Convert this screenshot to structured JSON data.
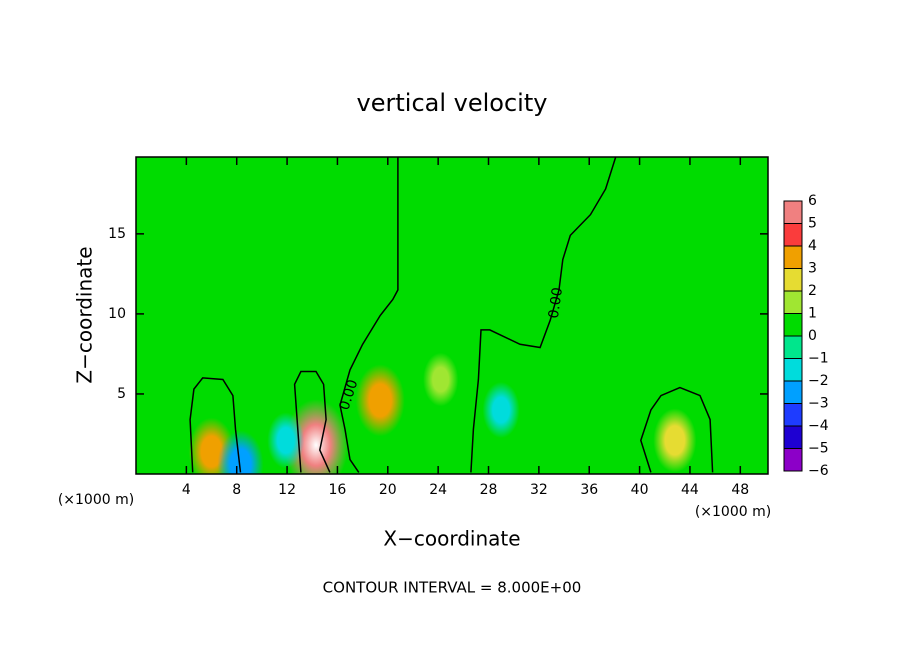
{
  "chart_data": {
    "type": "contour",
    "title": "vertical velocity",
    "xlabel": "X−coordinate",
    "ylabel": "Z−coordinate",
    "x_unit": "(×1000 m)",
    "footer": "CONTOUR INTERVAL = 8.000E+00",
    "xlim": [
      0,
      50.2
    ],
    "ylim": [
      0,
      19.8
    ],
    "xticks": [
      4,
      8,
      12,
      16,
      20,
      24,
      28,
      32,
      36,
      40,
      44,
      48
    ],
    "yticks": [
      5,
      10,
      15
    ],
    "background_color": "#00dc00",
    "cells": [
      {
        "x": 6.0,
        "z": 1.4,
        "value": 3
      },
      {
        "x": 14.3,
        "z": 1.8,
        "value": 6
      },
      {
        "x": 19.4,
        "z": 4.6,
        "value": 3.5
      },
      {
        "x": 24.2,
        "z": 5.9,
        "value": 1.2
      },
      {
        "x": 29.0,
        "z": 4.0,
        "value": -1.5
      },
      {
        "x": 42.8,
        "z": 2.1,
        "value": 2.5
      },
      {
        "x": 11.9,
        "z": 2.1,
        "value": -1.5
      },
      {
        "x": 25.8,
        "z": 12.8,
        "value": 0.5
      },
      {
        "x": 8.3,
        "z": 0.6,
        "value": -3
      }
    ],
    "contours": [
      {
        "level": 0,
        "x": [
          20.8,
          20.8,
          20.4,
          19.4,
          18.0,
          17.0,
          16.2,
          16.6,
          17.0,
          17.7
        ],
        "z": [
          19.8,
          11.5,
          10.9,
          9.9,
          8.1,
          6.5,
          4.3,
          2.8,
          0.9,
          0.1
        ]
      },
      {
        "level": 0,
        "x": [
          38.1,
          37.3,
          36.1,
          34.5,
          33.9,
          33.6,
          32.9,
          32.1,
          30.5,
          28.1,
          27.4,
          27.2,
          26.8,
          26.6
        ],
        "z": [
          19.8,
          17.8,
          16.2,
          14.9,
          13.4,
          11.5,
          9.6,
          7.9,
          8.1,
          9.0,
          9.0,
          5.9,
          2.8,
          0.1
        ]
      },
      {
        "level": 0,
        "x": [
          4.5,
          4.3,
          4.6,
          5.3,
          6.9,
          7.7,
          7.9,
          8.3
        ],
        "z": [
          0.1,
          3.4,
          5.3,
          6.0,
          5.9,
          4.9,
          2.8,
          0.1
        ]
      },
      {
        "level": 0,
        "x": [
          13.1,
          12.8,
          12.6,
          13.1,
          14.3,
          14.9,
          15.1,
          14.6,
          15.4
        ],
        "z": [
          0.1,
          3.4,
          5.6,
          6.4,
          6.4,
          5.6,
          3.4,
          1.5,
          0.1
        ]
      },
      {
        "level": 0,
        "x": [
          40.9,
          40.1,
          40.9,
          41.7,
          43.2,
          44.8,
          45.6,
          45.8
        ],
        "z": [
          0.1,
          2.1,
          4.0,
          4.9,
          5.4,
          4.9,
          3.4,
          0.1
        ]
      }
    ],
    "contour_labels": [
      "0.00",
      "0.00"
    ],
    "colorbar": {
      "levels": [
        {
          "value": -6,
          "label": "−6"
        },
        {
          "value": -5,
          "label": "−5"
        },
        {
          "value": -4,
          "label": "−4"
        },
        {
          "value": -3,
          "label": "−3"
        },
        {
          "value": -2,
          "label": "−2"
        },
        {
          "value": -1,
          "label": "−1"
        },
        0,
        1,
        2,
        3,
        4,
        5,
        6
      ],
      "colors": [
        "#8c00c8",
        "#1e00d2",
        "#1e3cff",
        "#00a0ff",
        "#00dcdc",
        "#00e68c",
        "#00dc00",
        "#a0e632",
        "#e6dc32",
        "#f0a000",
        "#fa3c3c",
        "#f08080"
      ]
    }
  }
}
